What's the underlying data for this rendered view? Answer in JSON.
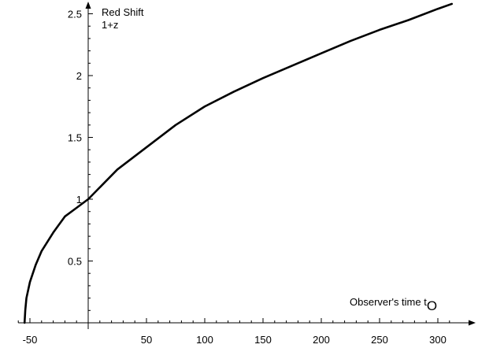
{
  "chart_data": {
    "type": "line",
    "y_axis_title_line1": "Red Shift",
    "y_axis_title_line2": "1+z",
    "x_axis_title_main": "Observer's time t",
    "x_axis_title_sub": "O",
    "xlim": [
      -60,
      315
    ],
    "ylim": [
      0,
      2.6
    ],
    "x_ticks": [
      -50,
      50,
      100,
      150,
      200,
      250,
      300
    ],
    "x_tick_labels": [
      "-50",
      "50",
      "100",
      "150",
      "200",
      "250",
      "300"
    ],
    "y_ticks": [
      0.5,
      1,
      1.5,
      2,
      2.5
    ],
    "y_tick_labels": [
      "0.5",
      "1",
      "1.5",
      "2",
      "2.5"
    ],
    "grid": false,
    "series": [
      {
        "color": "#000000",
        "points": [
          [
            -54.6,
            0.0
          ],
          [
            -54,
            0.1
          ],
          [
            -53,
            0.2
          ],
          [
            -50,
            0.33
          ],
          [
            -45,
            0.47
          ],
          [
            -40,
            0.58
          ],
          [
            -30,
            0.73
          ],
          [
            -20,
            0.86
          ],
          [
            -10,
            0.93
          ],
          [
            0,
            1.0
          ],
          [
            25,
            1.24
          ],
          [
            50,
            1.42
          ],
          [
            75,
            1.6
          ],
          [
            100,
            1.75
          ],
          [
            125,
            1.87
          ],
          [
            150,
            1.98
          ],
          [
            175,
            2.08
          ],
          [
            200,
            2.18
          ],
          [
            225,
            2.28
          ],
          [
            250,
            2.37
          ],
          [
            275,
            2.45
          ],
          [
            300,
            2.54
          ],
          [
            312,
            2.58
          ]
        ]
      }
    ]
  }
}
